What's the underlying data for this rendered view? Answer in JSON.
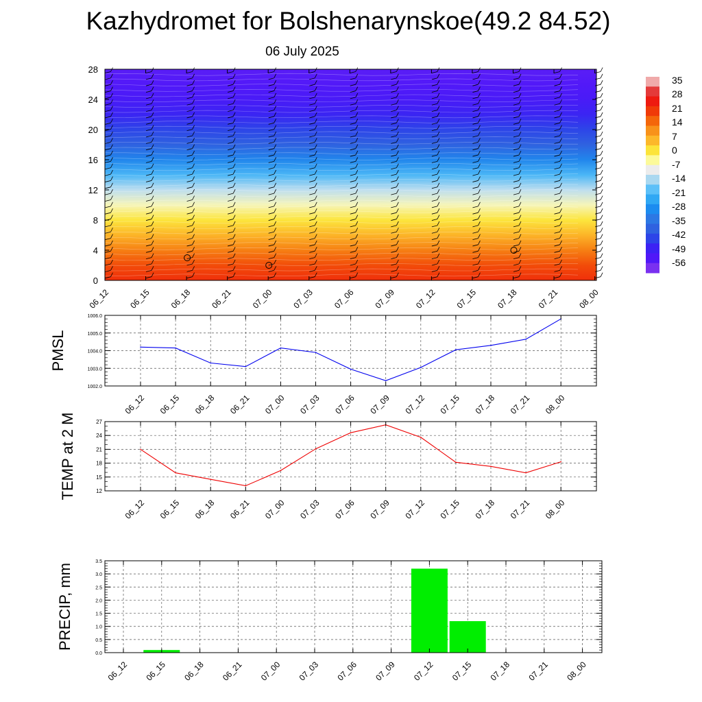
{
  "title": "Kazhydromet for Bolshenarynskoe(49.2 84.52)",
  "subtitle": "06 July 2025",
  "time_labels": [
    "06_12",
    "06_15",
    "06_18",
    "06_21",
    "07_00",
    "07_03",
    "07_06",
    "07_09",
    "07_12",
    "07_15",
    "07_18",
    "07_21",
    "08_00"
  ],
  "chart_data": [
    {
      "type": "heatmap",
      "title": "",
      "xlabel": "",
      "ylabel": "",
      "x": [
        "06_12",
        "06_15",
        "06_18",
        "06_21",
        "07_00",
        "07_03",
        "07_06",
        "07_09",
        "07_12",
        "07_15",
        "07_18",
        "07_21",
        "08_00"
      ],
      "y_ticks": [
        0,
        4,
        8,
        12,
        16,
        20,
        24,
        28
      ],
      "ylim": [
        0,
        28
      ],
      "colorbar_labels": [
        "35",
        "28",
        "21",
        "14",
        "7",
        "0",
        "-7",
        "-14",
        "-21",
        "-28",
        "-35",
        "-42",
        "-49",
        "-56"
      ],
      "colorbar_colors": [
        "#f0aaaa",
        "#e43a3a",
        "#ee1a10",
        "#f03a08",
        "#f4660a",
        "#f8921a",
        "#fcb82a",
        "#fce43a",
        "#fcfa9a",
        "#ececec",
        "#aad8f0",
        "#5cc0f8",
        "#30a8f4",
        "#1c8cf0",
        "#2c78e4",
        "#2f62e0",
        "#2d44e8",
        "#3c22f4",
        "#5018f8",
        "#7a30f0"
      ],
      "levels": [
        {
          "height": 0,
          "temp": 24
        },
        {
          "height": 2,
          "temp": 20
        },
        {
          "height": 4,
          "temp": 14
        },
        {
          "height": 6,
          "temp": 7
        },
        {
          "height": 8,
          "temp": 1
        },
        {
          "height": 10,
          "temp": -6
        },
        {
          "height": 12,
          "temp": -13
        },
        {
          "height": 14,
          "temp": -22
        },
        {
          "height": 16,
          "temp": -32
        },
        {
          "height": 18,
          "temp": -41
        },
        {
          "height": 20,
          "temp": -46
        },
        {
          "height": 22,
          "temp": -51
        },
        {
          "height": 24,
          "temp": -55
        },
        {
          "height": 26,
          "temp": -57
        },
        {
          "height": 28,
          "temp": -58
        }
      ],
      "calm_markers": [
        {
          "x": "06_18",
          "height": 3
        },
        {
          "x": "07_00",
          "height": 2
        },
        {
          "x": "07_18",
          "height": 4
        }
      ]
    },
    {
      "type": "line",
      "ylabel": "PMSL",
      "x": [
        "06_12",
        "06_15",
        "06_18",
        "06_21",
        "07_00",
        "07_03",
        "07_06",
        "07_09",
        "07_12",
        "07_15",
        "07_18",
        "07_21",
        "08_00"
      ],
      "values": [
        1004.2,
        1004.15,
        1003.3,
        1003.1,
        1004.15,
        1003.9,
        1002.95,
        1002.3,
        1003.05,
        1004.05,
        1004.3,
        1004.65,
        1005.8
      ],
      "ylim": [
        1002.0,
        1006.0
      ],
      "yticks": [
        "1002.0",
        "1003.0",
        "1004.0",
        "1005.0",
        "1006.0"
      ],
      "color": "#0000ee",
      "grid": true
    },
    {
      "type": "line",
      "ylabel": "TEMP at 2 M",
      "x": [
        "06_12",
        "06_15",
        "06_18",
        "06_21",
        "07_00",
        "07_03",
        "07_06",
        "07_09",
        "07_12",
        "07_15",
        "07_18",
        "07_21",
        "08_00"
      ],
      "values": [
        21,
        15.9,
        14.5,
        13.1,
        16.4,
        21.1,
        24.6,
        26.3,
        23.6,
        18.2,
        17.3,
        15.9,
        18.3
      ],
      "ylim": [
        12,
        27
      ],
      "yticks": [
        "12",
        "15",
        "18",
        "21",
        "24",
        "27"
      ],
      "color": "#ee0000",
      "grid": true
    },
    {
      "type": "bar",
      "ylabel": "PRECIP, mm",
      "x": [
        "06_12",
        "06_15",
        "06_18",
        "06_21",
        "07_00",
        "07_03",
        "07_06",
        "07_09",
        "07_12",
        "07_15",
        "07_18",
        "07_21",
        "08_00"
      ],
      "values": [
        0,
        0.1,
        0,
        0,
        0,
        0,
        0,
        0,
        3.2,
        1.2,
        0,
        0,
        0
      ],
      "ylim": [
        0,
        3.5
      ],
      "yticks": [
        "0.0",
        "0.5",
        "1.0",
        "1.5",
        "2.0",
        "2.5",
        "3.0",
        "3.5"
      ],
      "color": "#00ee00",
      "grid": true
    }
  ]
}
